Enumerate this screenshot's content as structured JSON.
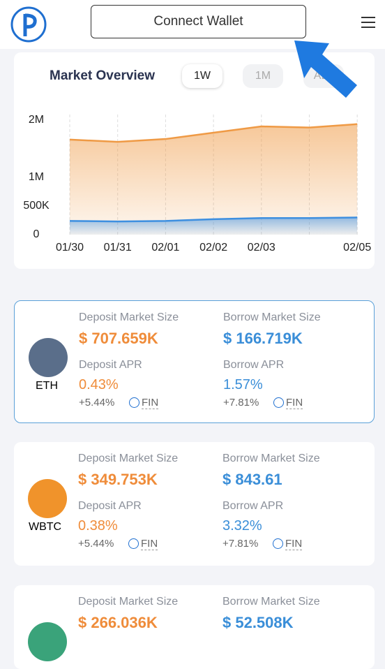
{
  "header": {
    "button": "Connect Wallet"
  },
  "overview": {
    "title": "Market Overview",
    "tabs": [
      "1W",
      "1M",
      "ALL"
    ],
    "active_tab": 0
  },
  "chart_data": {
    "type": "area",
    "categories": [
      "01/30",
      "01/31",
      "02/01",
      "02/02",
      "02/03",
      null,
      "02/05"
    ],
    "series": [
      {
        "color": "#ef9a45",
        "values": [
          1660000,
          1620000,
          1670000,
          1780000,
          1890000,
          1870000,
          1930000
        ]
      },
      {
        "color": "#3d8fe0",
        "values": [
          240000,
          230000,
          240000,
          270000,
          290000,
          290000,
          300000
        ]
      }
    ],
    "ylim": [
      0,
      2000000
    ],
    "yticks": [
      0,
      {
        "value": 500000,
        "label": "500K"
      },
      {
        "value": 1000000,
        "label": "1M"
      },
      {
        "value": 2000000,
        "label": "2M"
      }
    ],
    "grid": true
  },
  "labels": {
    "deposit_size": "Deposit Market Size",
    "borrow_size": "Borrow Market Size",
    "deposit_apr": "Deposit APR",
    "borrow_apr": "Borrow APR",
    "token": "FIN"
  },
  "markets": [
    {
      "symbol": "ETH",
      "deposit_size": "$ 707.659K",
      "borrow_size": "$ 166.719K",
      "deposit_apr": "0.43%",
      "borrow_apr": "1.57%",
      "deposit_bonus": "+5.44%",
      "borrow_bonus": "+7.81%"
    },
    {
      "symbol": "WBTC",
      "deposit_size": "$ 349.753K",
      "borrow_size": "$ 843.61",
      "deposit_apr": "0.38%",
      "borrow_apr": "3.32%",
      "deposit_bonus": "+5.44%",
      "borrow_bonus": "+7.81%"
    },
    {
      "deposit_size": "$ 266.036K",
      "borrow_size": "$ 52.508K"
    }
  ]
}
